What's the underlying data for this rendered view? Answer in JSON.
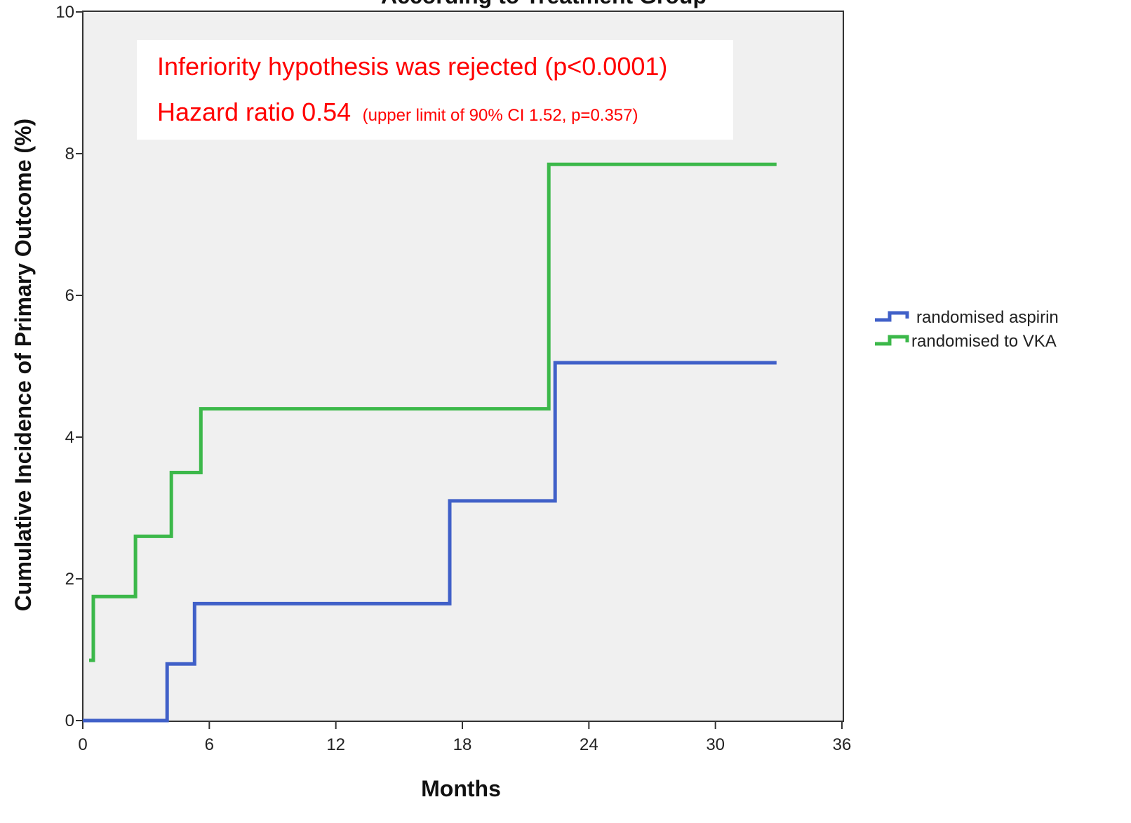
{
  "chart_data": {
    "type": "line",
    "title": "According to Treatment Group",
    "xlabel": "Months",
    "ylabel": "Cumulative Incidence of Primary Outcome (%)",
    "xlim": [
      0,
      36
    ],
    "ylim": [
      0,
      10
    ],
    "xticks": [
      0,
      6,
      12,
      18,
      24,
      30,
      36
    ],
    "yticks": [
      0,
      2,
      4,
      6,
      8,
      10
    ],
    "grid": false,
    "legend_position": "right",
    "step": true,
    "series": [
      {
        "name": "randomised aspirin",
        "color": "#4060c8",
        "points": [
          [
            0,
            0
          ],
          [
            4.0,
            0
          ],
          [
            4.0,
            0.8
          ],
          [
            5.3,
            0.8
          ],
          [
            5.3,
            1.65
          ],
          [
            17.4,
            1.65
          ],
          [
            17.4,
            3.1
          ],
          [
            22.4,
            3.1
          ],
          [
            22.4,
            5.05
          ],
          [
            32.9,
            5.05
          ]
        ]
      },
      {
        "name": "randomised to VKA",
        "color": "#3cb84a",
        "points": [
          [
            0.3,
            0.85
          ],
          [
            0.5,
            0.85
          ],
          [
            0.5,
            1.75
          ],
          [
            2.5,
            1.75
          ],
          [
            2.5,
            2.6
          ],
          [
            4.2,
            2.6
          ],
          [
            4.2,
            3.5
          ],
          [
            5.6,
            3.5
          ],
          [
            5.6,
            4.4
          ],
          [
            22.1,
            4.4
          ],
          [
            22.1,
            7.85
          ],
          [
            32.9,
            7.85
          ]
        ]
      }
    ],
    "annotations": {
      "line1": "Inferiority hypothesis was rejected (p<0.0001)",
      "line2_main": "Hazard ratio 0.54",
      "line2_detail": "(upper limit of 90% CI 1.52, p=0.357)"
    }
  }
}
